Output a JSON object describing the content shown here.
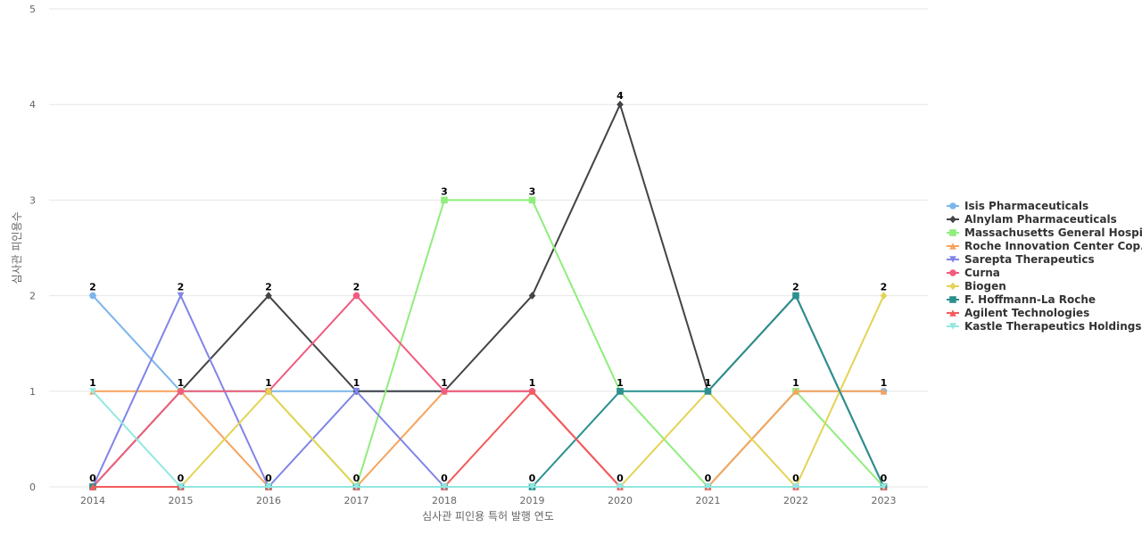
{
  "chart_data": {
    "type": "line",
    "title": "",
    "xlabel": "심사관 피인용 특허 발행 연도",
    "ylabel": "심사관 피인용수",
    "x": [
      "2014",
      "2015",
      "2016",
      "2017",
      "2018",
      "2019",
      "2020",
      "2021",
      "2022",
      "2023"
    ],
    "ylim": [
      0,
      5
    ],
    "yticks": [
      0,
      1,
      2,
      3,
      4,
      5
    ],
    "grid": true,
    "legend_position": "right",
    "series": [
      {
        "name": "Isis Pharmaceuticals",
        "color": "#7cb5ec",
        "marker": "circle",
        "values": [
          2,
          1,
          1,
          1,
          1,
          1,
          0,
          0,
          1,
          1
        ]
      },
      {
        "name": "Alnylam Pharmaceuticals",
        "color": "#434348",
        "marker": "diamond",
        "values": [
          0,
          1,
          2,
          1,
          1,
          2,
          4,
          1,
          2,
          0
        ]
      },
      {
        "name": "Massachusetts General Hospi...",
        "color": "#90ed7d",
        "marker": "square",
        "values": [
          0,
          1,
          1,
          0,
          3,
          3,
          1,
          0,
          1,
          0
        ]
      },
      {
        "name": "Roche Innovation Center Cop...",
        "color": "#f7a35c",
        "marker": "triangle",
        "values": [
          1,
          1,
          0,
          0,
          1,
          1,
          0,
          0,
          1,
          1
        ]
      },
      {
        "name": "Sarepta Therapeutics",
        "color": "#8085e9",
        "marker": "triangle-down",
        "values": [
          0,
          2,
          0,
          1,
          0,
          0,
          0,
          0,
          0,
          0
        ]
      },
      {
        "name": "Curna",
        "color": "#f15c80",
        "marker": "circle",
        "values": [
          0,
          1,
          1,
          2,
          1,
          1,
          0,
          0,
          0,
          0
        ]
      },
      {
        "name": "Biogen",
        "color": "#e4d354",
        "marker": "diamond",
        "values": [
          0,
          0,
          1,
          0,
          0,
          0,
          0,
          1,
          0,
          2
        ]
      },
      {
        "name": "F. Hoffmann-La Roche",
        "color": "#2b908f",
        "marker": "square",
        "values": [
          0,
          0,
          0,
          0,
          0,
          0,
          1,
          1,
          2,
          0
        ]
      },
      {
        "name": "Agilent Technologies",
        "color": "#f45b5b",
        "marker": "triangle",
        "values": [
          0,
          0,
          0,
          0,
          0,
          1,
          0,
          0,
          0,
          0
        ]
      },
      {
        "name": "Kastle Therapeutics Holdings",
        "color": "#91e8e1",
        "marker": "triangle-down",
        "values": [
          1,
          0,
          0,
          0,
          0,
          0,
          0,
          0,
          0,
          0
        ]
      }
    ],
    "data_labels": {
      "show": true,
      "values": [
        2,
        2,
        2,
        2,
        3,
        3,
        4,
        1,
        2,
        2
      ],
      "low_values": [
        1,
        1,
        1,
        1,
        1,
        1,
        1,
        1,
        1,
        1
      ],
      "bottom_values": [
        0,
        0,
        0,
        0,
        0,
        0,
        0,
        0,
        0,
        0
      ]
    }
  }
}
